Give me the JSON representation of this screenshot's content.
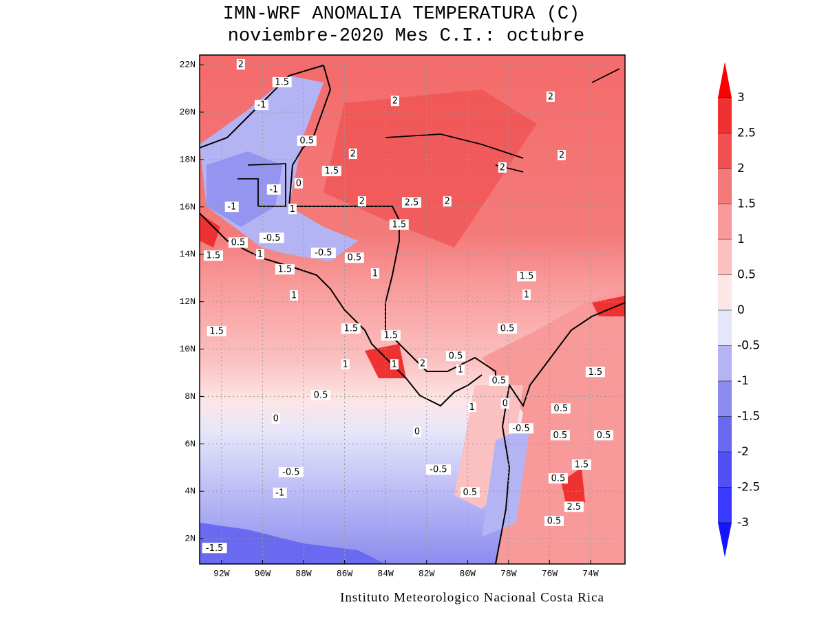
{
  "chart_data": {
    "type": "map",
    "title": "IMN-WRF  ANOMALIA TEMPERATURA (C)",
    "subtitle": "noviembre-2020 Mes C.I.: octubre",
    "credit": "Instituto Meteorologico Nacional Costa Rica",
    "xlim": [
      -93.07,
      -72.32
    ],
    "ylim": [
      0.93,
      22.41
    ],
    "xticks": [
      {
        "value": -92,
        "label": "92W"
      },
      {
        "value": -90,
        "label": "90W"
      },
      {
        "value": -88,
        "label": "88W"
      },
      {
        "value": -86,
        "label": "86W"
      },
      {
        "value": -84,
        "label": "84W"
      },
      {
        "value": -82,
        "label": "82W"
      },
      {
        "value": -80,
        "label": "80W"
      },
      {
        "value": -78,
        "label": "78W"
      },
      {
        "value": -76,
        "label": "76W"
      },
      {
        "value": -74,
        "label": "74W"
      }
    ],
    "yticks": [
      {
        "value": 2,
        "label": "2N"
      },
      {
        "value": 4,
        "label": "4N"
      },
      {
        "value": 6,
        "label": "6N"
      },
      {
        "value": 8,
        "label": "8N"
      },
      {
        "value": 10,
        "label": "10N"
      },
      {
        "value": 12,
        "label": "12N"
      },
      {
        "value": 14,
        "label": "14N"
      },
      {
        "value": 16,
        "label": "16N"
      },
      {
        "value": 18,
        "label": "18N"
      },
      {
        "value": 20,
        "label": "20N"
      },
      {
        "value": 22,
        "label": "22N"
      }
    ],
    "grid": true,
    "colorbar": {
      "levels": [
        -3,
        -2.5,
        -2,
        -1.5,
        -1,
        -0.5,
        0,
        0.5,
        1,
        1.5,
        2,
        2.5,
        3
      ],
      "colors": [
        "#1414ff",
        "#3a3aff",
        "#5050f5",
        "#6a6af0",
        "#8c8cf0",
        "#b4b4f5",
        "#e6e6fa",
        "#fde6e6",
        "#fbc0c0",
        "#f89a9a",
        "#f47a7a",
        "#f05050",
        "#ee3232",
        "#ff0000"
      ]
    },
    "contour_labels": [
      {
        "value": 2,
        "lon": -91.06,
        "lat": 22.0
      },
      {
        "value": 1.5,
        "lon": -89.05,
        "lat": 21.25
      },
      {
        "value": -1,
        "lon": -90.05,
        "lat": 20.29
      },
      {
        "value": 2,
        "lon": -83.54,
        "lat": 20.46
      },
      {
        "value": 2,
        "lon": -75.95,
        "lat": 20.64
      },
      {
        "value": 0.5,
        "lon": -87.84,
        "lat": 18.78
      },
      {
        "value": 2,
        "lon": -85.59,
        "lat": 18.23
      },
      {
        "value": 2,
        "lon": -75.41,
        "lat": 18.17
      },
      {
        "value": 1.5,
        "lon": -86.63,
        "lat": 17.5
      },
      {
        "value": 2,
        "lon": -78.3,
        "lat": 17.65
      },
      {
        "value": -1,
        "lon": -89.45,
        "lat": 16.72
      },
      {
        "value": 0,
        "lon": -88.24,
        "lat": 16.98
      },
      {
        "value": -1,
        "lon": -91.5,
        "lat": 15.99
      },
      {
        "value": 1,
        "lon": -88.54,
        "lat": 15.9
      },
      {
        "value": 2,
        "lon": -85.15,
        "lat": 16.22
      },
      {
        "value": 2.5,
        "lon": -82.73,
        "lat": 16.17
      },
      {
        "value": 2,
        "lon": -80.99,
        "lat": 16.22
      },
      {
        "value": 1.5,
        "lon": -83.34,
        "lat": 15.24
      },
      {
        "value": 0.5,
        "lon": -91.19,
        "lat": 14.48
      },
      {
        "value": -0.5,
        "lon": -89.55,
        "lat": 14.68
      },
      {
        "value": -0.5,
        "lon": -87.03,
        "lat": 14.05
      },
      {
        "value": 1.5,
        "lon": -92.4,
        "lat": 13.93
      },
      {
        "value": 1,
        "lon": -90.12,
        "lat": 13.99
      },
      {
        "value": 0.5,
        "lon": -85.52,
        "lat": 13.84
      },
      {
        "value": 1.5,
        "lon": -88.91,
        "lat": 13.35
      },
      {
        "value": 1,
        "lon": -84.51,
        "lat": 13.18
      },
      {
        "value": 1.5,
        "lon": -77.12,
        "lat": 13.06
      },
      {
        "value": 1,
        "lon": -88.47,
        "lat": 12.25
      },
      {
        "value": 1,
        "lon": -77.12,
        "lat": 12.28
      },
      {
        "value": 1.5,
        "lon": -92.24,
        "lat": 10.74
      },
      {
        "value": 0.5,
        "lon": -78.06,
        "lat": 10.85
      },
      {
        "value": 1.5,
        "lon": -85.69,
        "lat": 10.85
      },
      {
        "value": 1.5,
        "lon": -83.74,
        "lat": 10.56
      },
      {
        "value": 0.5,
        "lon": -80.58,
        "lat": 9.69
      },
      {
        "value": 1,
        "lon": -85.96,
        "lat": 9.34
      },
      {
        "value": 1,
        "lon": -83.57,
        "lat": 9.34
      },
      {
        "value": 2,
        "lon": -82.19,
        "lat": 9.37
      },
      {
        "value": 1,
        "lon": -80.35,
        "lat": 9.11
      },
      {
        "value": 1.5,
        "lon": -73.77,
        "lat": 9.02
      },
      {
        "value": 0.5,
        "lon": -87.16,
        "lat": 8.04
      },
      {
        "value": 0.5,
        "lon": -78.47,
        "lat": 8.65
      },
      {
        "value": 1,
        "lon": -79.78,
        "lat": 7.54
      },
      {
        "value": 0,
        "lon": -78.17,
        "lat": 7.69
      },
      {
        "value": 0,
        "lon": -89.35,
        "lat": 7.05
      },
      {
        "value": 0.5,
        "lon": -75.45,
        "lat": 7.48
      },
      {
        "value": -0.5,
        "lon": -77.39,
        "lat": 6.64
      },
      {
        "value": 0,
        "lon": -82.46,
        "lat": 6.5
      },
      {
        "value": 0.5,
        "lon": -75.48,
        "lat": 6.35
      },
      {
        "value": 0.5,
        "lon": -73.36,
        "lat": 6.35
      },
      {
        "value": 1.5,
        "lon": -74.44,
        "lat": 5.11
      },
      {
        "value": -0.5,
        "lon": -88.61,
        "lat": 4.79
      },
      {
        "value": -0.5,
        "lon": -81.42,
        "lat": 4.9
      },
      {
        "value": 0.5,
        "lon": -75.58,
        "lat": 4.53
      },
      {
        "value": -1,
        "lon": -89.15,
        "lat": 3.92
      },
      {
        "value": 0.5,
        "lon": -79.88,
        "lat": 3.94
      },
      {
        "value": 2.5,
        "lon": -74.81,
        "lat": 3.33
      },
      {
        "value": 0.5,
        "lon": -75.78,
        "lat": 2.73
      },
      {
        "value": -1.5,
        "lon": -92.34,
        "lat": 1.59
      }
    ]
  }
}
